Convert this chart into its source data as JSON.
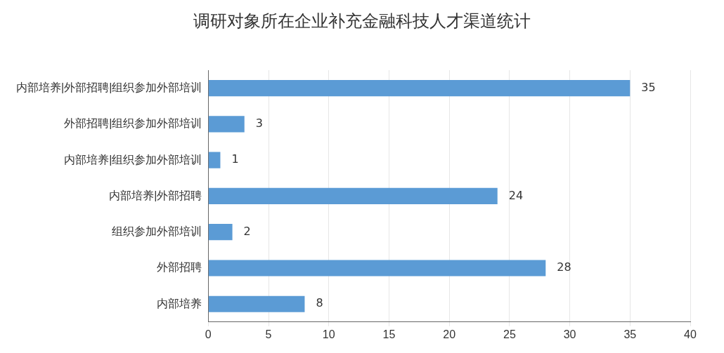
{
  "chart_data": {
    "type": "bar",
    "orientation": "horizontal",
    "title": "调研对象所在企业补充金融科技人才渠道统计",
    "categories": [
      "内部培养|外部招聘|组织参加外部培训",
      "外部招聘|组织参加外部培训",
      "内部培养|组织参加外部培训",
      "内部培养|外部招聘",
      "组织参加外部培训",
      "外部招聘",
      "内部培养"
    ],
    "values": [
      35,
      3,
      1,
      24,
      2,
      28,
      8
    ],
    "color": "#5b9bd5",
    "xlim": [
      0,
      40
    ],
    "xticks": [
      0,
      5,
      10,
      15,
      20,
      25,
      30,
      35,
      40
    ],
    "grid": "x",
    "data_labels": true
  }
}
